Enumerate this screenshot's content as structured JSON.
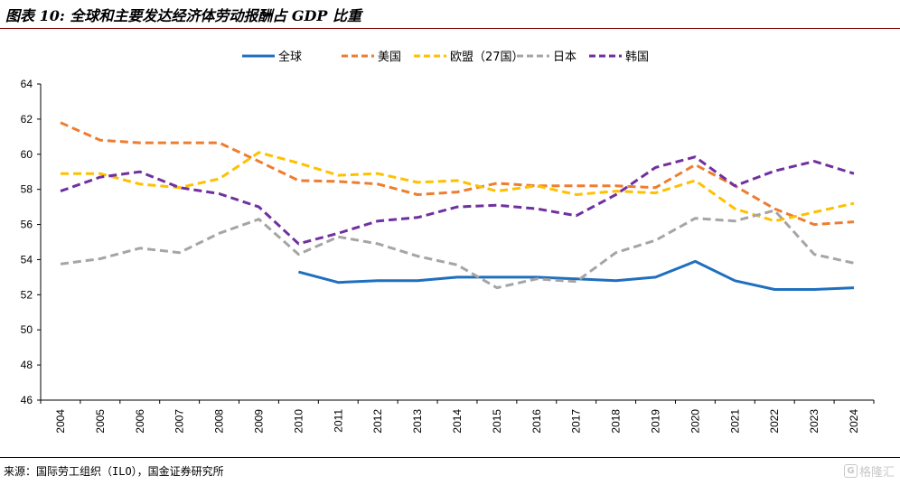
{
  "title": "图表 10: 全球和主要发达经济体劳动报酬占 GDP 比重",
  "source": "来源：国际劳工组织（ILO），国金证券研究所",
  "watermark": "格隆汇",
  "chart_data": {
    "type": "line",
    "title": "",
    "xlabel": "",
    "ylabel": "",
    "ylim": [
      46,
      64
    ],
    "yticks": [
      46,
      48,
      50,
      52,
      54,
      56,
      58,
      60,
      62,
      64
    ],
    "x": [
      "2004",
      "2005",
      "2006",
      "2007",
      "2008",
      "2009",
      "2010",
      "2011",
      "2012",
      "2013",
      "2014",
      "2015",
      "2016",
      "2017",
      "2018",
      "2019",
      "2020",
      "2021",
      "2022",
      "2023",
      "2024"
    ],
    "grid": false,
    "legend_position": "top",
    "series": [
      {
        "name": "全球",
        "color": "#1f6fbf",
        "dash": "solid",
        "values": [
          null,
          null,
          null,
          null,
          null,
          null,
          53.3,
          52.7,
          52.8,
          52.8,
          53.0,
          53.0,
          53.0,
          52.9,
          52.8,
          53.0,
          53.9,
          52.8,
          52.3,
          52.3,
          52.4
        ]
      },
      {
        "name": "美国",
        "color": "#ed7d31",
        "dash": "dashed",
        "values": [
          61.8,
          60.8,
          60.65,
          60.65,
          60.65,
          59.6,
          58.5,
          58.45,
          58.3,
          57.7,
          57.85,
          58.35,
          58.2,
          58.2,
          58.2,
          58.1,
          59.4,
          58.2,
          56.9,
          56.0,
          56.15
        ]
      },
      {
        "name": "欧盟（27国）",
        "color": "#ffc000",
        "dash": "dashed",
        "values": [
          58.9,
          58.9,
          58.3,
          58.1,
          58.6,
          60.1,
          59.5,
          58.8,
          58.9,
          58.4,
          58.5,
          57.9,
          58.2,
          57.7,
          57.9,
          57.8,
          58.5,
          56.9,
          56.2,
          56.7,
          57.2
        ]
      },
      {
        "name": "日本",
        "color": "#a5a5a5",
        "dash": "dashed",
        "values": [
          53.75,
          54.05,
          54.65,
          54.4,
          55.5,
          56.3,
          54.3,
          55.3,
          54.9,
          54.2,
          53.7,
          52.4,
          52.9,
          52.75,
          54.4,
          55.1,
          56.35,
          56.2,
          56.8,
          54.3,
          53.8
        ]
      },
      {
        "name": "韩国",
        "color": "#7030a0",
        "dash": "dashed",
        "values": [
          57.9,
          58.7,
          59.0,
          58.1,
          57.75,
          57.0,
          54.9,
          55.5,
          56.2,
          56.4,
          57.0,
          57.1,
          56.9,
          56.5,
          57.7,
          59.25,
          59.85,
          58.2,
          59.05,
          59.6,
          58.9
        ]
      }
    ]
  }
}
